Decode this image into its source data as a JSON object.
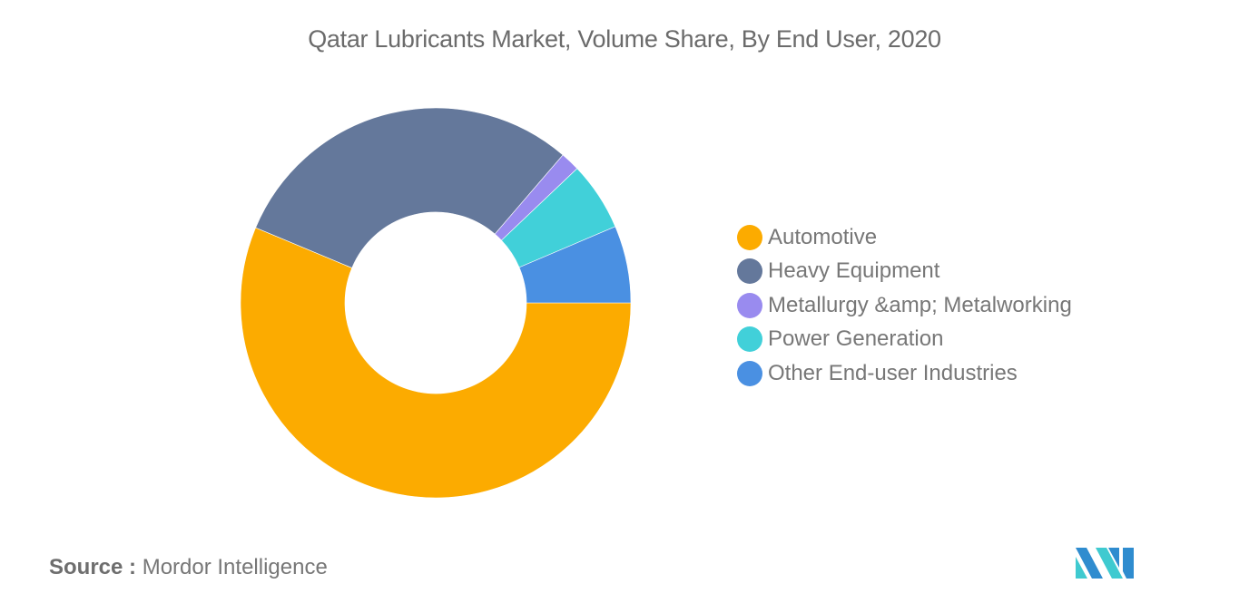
{
  "title": "Qatar Lubricants Market, Volume Share, By End User, 2020",
  "source": {
    "label": "Source :",
    "value": "Mordor Intelligence"
  },
  "logo": {
    "name": "mordor-intelligence-logo",
    "colors": [
      "#2f8ccf",
      "#3fcad0"
    ]
  },
  "chart_data": {
    "type": "pie",
    "subtype": "donut",
    "title": "Qatar Lubricants Market, Volume Share, By End User, 2020",
    "units": "percent (estimated from arc angles)",
    "categories": [
      "Automotive",
      "Heavy Equipment",
      "Metallurgy &amp; Metalworking",
      "Power Generation",
      "Other End-user Industries"
    ],
    "values": [
      56.3,
      30.0,
      1.6,
      5.7,
      6.4
    ],
    "colors": [
      "#fcab00",
      "#64789b",
      "#998bef",
      "#41d0d9",
      "#4a90e2"
    ],
    "start_angle_deg": 0,
    "direction": "clockwise",
    "legend_position": "right",
    "data_labels": false
  },
  "legend": {
    "items": [
      {
        "label": "Automotive",
        "color": "#fcab00"
      },
      {
        "label": "Heavy Equipment",
        "color": "#64789b"
      },
      {
        "label": "Metallurgy &amp; Metalworking",
        "color": "#998bef"
      },
      {
        "label": "Power Generation",
        "color": "#41d0d9"
      },
      {
        "label": "Other End-user Industries",
        "color": "#4a90e2"
      }
    ]
  }
}
